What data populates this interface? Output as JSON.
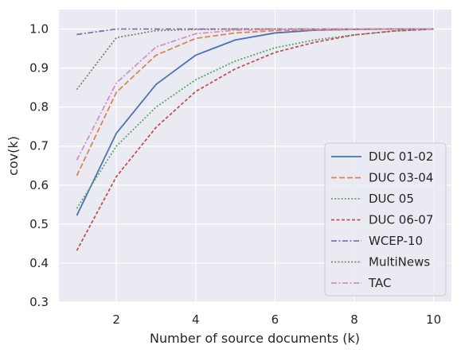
{
  "chart_data": {
    "type": "line",
    "title": "",
    "xlabel": "Number of source documents (k)",
    "ylabel": "cov(k)",
    "xlim": [
      0.55,
      10.45
    ],
    "ylim": [
      0.3,
      1.05
    ],
    "xticks": [
      2,
      4,
      6,
      8,
      10
    ],
    "yticks": [
      0.3,
      0.4,
      0.5,
      0.6,
      0.7,
      0.8,
      0.9,
      1.0
    ],
    "xtick_labels": [
      "2",
      "4",
      "6",
      "8",
      "10"
    ],
    "ytick_labels": [
      "0.3",
      "0.4",
      "0.5",
      "0.6",
      "0.7",
      "0.8",
      "0.9",
      "1.0"
    ],
    "grid": true,
    "legend_position": "lower-right",
    "x": [
      1,
      2,
      3,
      4,
      5,
      6,
      7,
      8,
      9,
      10
    ],
    "series": [
      {
        "name": "DUC 01-02",
        "color": "#4c72b0",
        "dash": "solid",
        "values": [
          0.522,
          0.733,
          0.858,
          0.933,
          0.972,
          0.99,
          0.997,
          0.999,
          1.0,
          1.0
        ]
      },
      {
        "name": "DUC 03-04",
        "color": "#dd8452",
        "dash": "dashed",
        "values": [
          0.624,
          0.838,
          0.933,
          0.976,
          0.99,
          0.996,
          0.998,
          0.999,
          1.0,
          1.0
        ]
      },
      {
        "name": "DUC 05",
        "color": "#55a868",
        "dash": "dotted",
        "values": [
          0.54,
          0.7,
          0.8,
          0.87,
          0.918,
          0.952,
          0.972,
          0.985,
          0.995,
          1.0
        ]
      },
      {
        "name": "DUC 06-07",
        "color": "#c44e52",
        "dash": "dashed-short",
        "values": [
          0.432,
          0.622,
          0.748,
          0.84,
          0.898,
          0.94,
          0.966,
          0.985,
          0.995,
          1.0
        ]
      },
      {
        "name": "WCEP-10",
        "color": "#8172b3",
        "dash": "dashdot",
        "values": [
          0.986,
          1.0,
          1.0,
          1.0,
          1.0,
          1.0,
          1.0,
          1.0,
          1.0,
          1.0
        ]
      },
      {
        "name": "MultiNews",
        "color": "#937860",
        "dash": "dotted",
        "values": [
          0.845,
          0.978,
          0.996,
          0.999,
          1.0,
          1.0,
          1.0,
          1.0,
          1.0,
          1.0
        ]
      },
      {
        "name": "TAC",
        "color": "#da8bc3",
        "dash": "dashdot",
        "values": [
          0.664,
          0.862,
          0.954,
          0.988,
          0.997,
          0.999,
          1.0,
          1.0,
          1.0,
          1.0
        ]
      }
    ]
  }
}
